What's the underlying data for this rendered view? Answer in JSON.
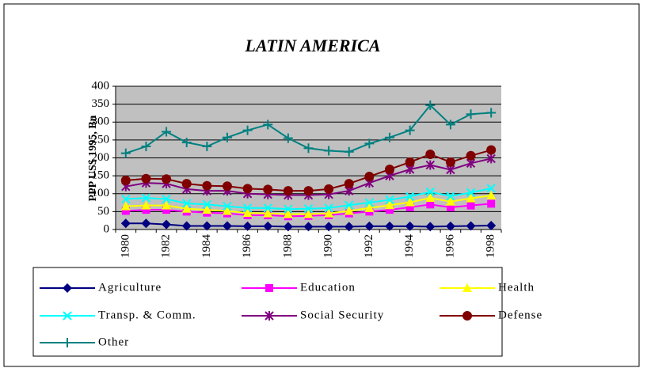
{
  "chart_data": {
    "type": "line",
    "title": "LATIN AMERICA",
    "y_label": "PPP US$ 1995, Bn",
    "categories": [
      "1980",
      null,
      "1982",
      null,
      "1984",
      null,
      "1986",
      null,
      "1988",
      null,
      "1990",
      null,
      "1992",
      null,
      "1994",
      null,
      "1996",
      null,
      "1998"
    ],
    "ylim": [
      0,
      400
    ],
    "yticks": [
      0,
      50,
      100,
      150,
      200,
      250,
      300,
      350,
      400
    ],
    "grid": true,
    "plot_background": "#c0c0c0",
    "legend": "bottom",
    "series": [
      {
        "name": "Agriculture",
        "color": "#000080",
        "marker": "diamond",
        "values": [
          17,
          17,
          14,
          10,
          10,
          10,
          9,
          9,
          8,
          8,
          8,
          8,
          9,
          9,
          9,
          8,
          9,
          10,
          11
        ]
      },
      {
        "name": "Education",
        "color": "#ff00ff",
        "marker": "square",
        "values": [
          52,
          55,
          55,
          50,
          47,
          45,
          40,
          40,
          37,
          38,
          40,
          45,
          50,
          55,
          62,
          70,
          62,
          67,
          72
        ]
      },
      {
        "name": "Health",
        "color": "#ffff00",
        "marker": "triangle",
        "values": [
          65,
          67,
          67,
          58,
          55,
          52,
          46,
          45,
          43,
          43,
          45,
          52,
          60,
          68,
          76,
          88,
          78,
          87,
          95
        ]
      },
      {
        "name": "Transp. & Comm.",
        "color": "#00ffff",
        "marker": "x",
        "values": [
          85,
          88,
          85,
          73,
          70,
          65,
          60,
          60,
          57,
          58,
          60,
          68,
          75,
          83,
          92,
          105,
          93,
          103,
          115
        ]
      },
      {
        "name": "Social Security",
        "color": "#800080",
        "marker": "star",
        "values": [
          120,
          130,
          128,
          113,
          108,
          108,
          100,
          98,
          96,
          96,
          98,
          108,
          130,
          150,
          168,
          180,
          167,
          185,
          198
        ]
      },
      {
        "name": "Defense",
        "color": "#800000",
        "marker": "circle",
        "values": [
          137,
          142,
          141,
          128,
          122,
          121,
          114,
          112,
          108,
          108,
          113,
          128,
          148,
          168,
          188,
          210,
          188,
          206,
          222
        ]
      },
      {
        "name": "Other",
        "color": "#008080",
        "marker": "plus",
        "values": [
          213,
          232,
          273,
          243,
          232,
          257,
          277,
          293,
          255,
          227,
          220,
          217,
          240,
          257,
          277,
          347,
          293,
          322,
          326
        ]
      }
    ]
  }
}
